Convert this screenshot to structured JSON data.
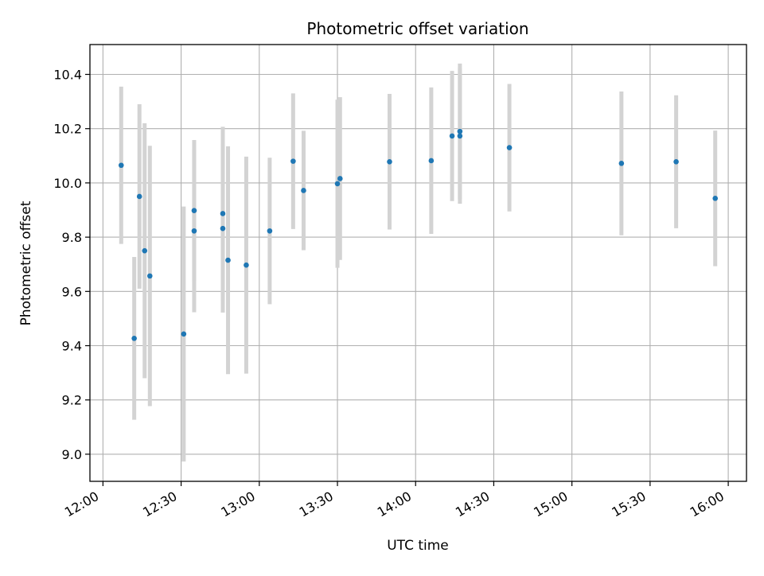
{
  "chart_data": {
    "type": "scatter",
    "title": "Photometric offset variation",
    "xlabel": "UTC time",
    "ylabel": "Photometric offset",
    "x_ticks": [
      "12:00",
      "12:30",
      "13:00",
      "13:30",
      "14:00",
      "14:30",
      "15:00",
      "15:30",
      "16:00"
    ],
    "y_ticks": [
      "9.0",
      "9.2",
      "9.4",
      "9.6",
      "9.8",
      "10.0",
      "10.2",
      "10.4"
    ],
    "xlim": [
      "11:55",
      "16:07"
    ],
    "ylim": [
      8.9,
      10.51
    ],
    "grid": true,
    "colors": {
      "point": "#1f77b4",
      "errorbar": "#d3d3d3",
      "grid": "#b0b0b0"
    },
    "series": [
      {
        "points": [
          {
            "x": "12:07",
            "y": 10.065,
            "err": 0.29
          },
          {
            "x": "12:12",
            "y": 9.427,
            "err": 0.3
          },
          {
            "x": "12:14",
            "y": 9.95,
            "err": 0.34
          },
          {
            "x": "12:16",
            "y": 9.75,
            "err": 0.47
          },
          {
            "x": "12:18",
            "y": 9.657,
            "err": 0.48
          },
          {
            "x": "12:31",
            "y": 9.443,
            "err": 0.47
          },
          {
            "x": "12:35",
            "y": 9.898,
            "err": 0.26
          },
          {
            "x": "12:35",
            "y": 9.823,
            "err": 0.3
          },
          {
            "x": "12:46",
            "y": 9.887,
            "err": 0.32
          },
          {
            "x": "12:46",
            "y": 9.832,
            "err": 0.31
          },
          {
            "x": "12:48",
            "y": 9.715,
            "err": 0.42
          },
          {
            "x": "12:55",
            "y": 9.697,
            "err": 0.4
          },
          {
            "x": "13:04",
            "y": 9.823,
            "err": 0.27
          },
          {
            "x": "13:13",
            "y": 10.08,
            "err": 0.25
          },
          {
            "x": "13:17",
            "y": 9.972,
            "err": 0.22
          },
          {
            "x": "13:30",
            "y": 9.997,
            "err": 0.31
          },
          {
            "x": "13:31",
            "y": 10.016,
            "err": 0.3
          },
          {
            "x": "13:50",
            "y": 10.078,
            "err": 0.25
          },
          {
            "x": "14:06",
            "y": 10.082,
            "err": 0.27
          },
          {
            "x": "14:14",
            "y": 10.173,
            "err": 0.24
          },
          {
            "x": "14:17",
            "y": 10.173,
            "err": 0.25
          },
          {
            "x": "14:17",
            "y": 10.19,
            "err": 0.25
          },
          {
            "x": "14:36",
            "y": 10.13,
            "err": 0.235
          },
          {
            "x": "15:19",
            "y": 10.072,
            "err": 0.265
          },
          {
            "x": "15:40",
            "y": 10.078,
            "err": 0.245
          },
          {
            "x": "15:55",
            "y": 9.943,
            "err": 0.25
          }
        ]
      }
    ]
  }
}
